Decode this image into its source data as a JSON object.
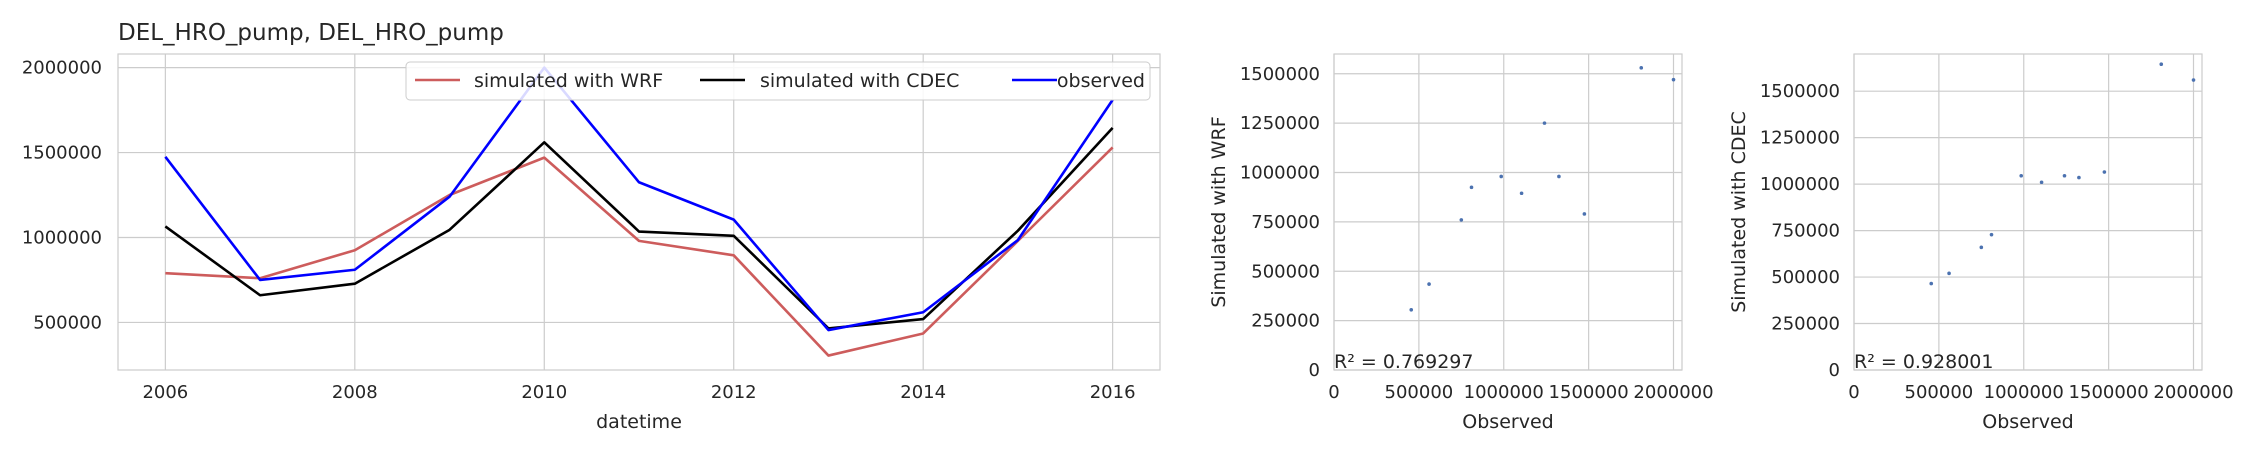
{
  "chart_data": [
    {
      "type": "line",
      "title": "DEL_HRO_pump, DEL_HRO_pump",
      "xlabel": "datetime",
      "ylabel": "",
      "x": [
        2006,
        2007,
        2008,
        2009,
        2010,
        2011,
        2012,
        2013,
        2014,
        2015,
        2016
      ],
      "xticks": [
        "2006",
        "2008",
        "2010",
        "2012",
        "2014",
        "2016"
      ],
      "yticks": [
        "500000",
        "1000000",
        "1500000",
        "2000000"
      ],
      "xlim": [
        2005.5,
        2016.5
      ],
      "ylim": [
        220000,
        2080000
      ],
      "grid": true,
      "legend": "top-right",
      "series": [
        {
          "name": "simulated with WRF",
          "color": "#cd5c5c",
          "values": [
            790000,
            760000,
            925000,
            1250000,
            1470000,
            980000,
            895000,
            305000,
            435000,
            980000,
            1530000
          ]
        },
        {
          "name": "simulated with CDEC",
          "color": "#000000",
          "values": [
            1065000,
            660000,
            728000,
            1045000,
            1560000,
            1035000,
            1010000,
            465000,
            520000,
            1040000,
            1645000
          ]
        },
        {
          "name": "observed",
          "color": "#0000ff",
          "values": [
            1475000,
            750000,
            810000,
            1240000,
            2000000,
            1325000,
            1105000,
            455000,
            560000,
            985000,
            1810000
          ]
        }
      ]
    },
    {
      "type": "scatter",
      "xlabel": "Observed",
      "ylabel": "Simulated with WRF",
      "annotation": "R² = 0.769297",
      "color": "#4c72b0",
      "xticks": [
        "0",
        "500000",
        "1000000",
        "1500000",
        "2000000"
      ],
      "yticks": [
        "0",
        "250000",
        "500000",
        "750000",
        "1000000",
        "1250000",
        "1500000"
      ],
      "xlim": [
        0,
        2050000
      ],
      "ylim": [
        0,
        1600000
      ],
      "grid": true,
      "x": [
        455000,
        560000,
        750000,
        810000,
        985000,
        1105000,
        1240000,
        1325000,
        1475000,
        1810000,
        2000000
      ],
      "y": [
        305000,
        435000,
        760000,
        925000,
        980000,
        895000,
        1250000,
        980000,
        790000,
        1530000,
        1470000
      ]
    },
    {
      "type": "scatter",
      "xlabel": "Observed",
      "ylabel": "Simulated with CDEC",
      "annotation": "R² = 0.928001",
      "color": "#4c72b0",
      "xticks": [
        "0",
        "500000",
        "1000000",
        "1500000",
        "2000000"
      ],
      "yticks": [
        "0",
        "250000",
        "500000",
        "750000",
        "1000000",
        "1250000",
        "1500000"
      ],
      "xlim": [
        0,
        2050000
      ],
      "ylim": [
        0,
        1700000
      ],
      "grid": true,
      "x": [
        455000,
        560000,
        750000,
        810000,
        985000,
        1105000,
        1240000,
        1325000,
        1475000,
        1810000,
        2000000
      ],
      "y": [
        465000,
        520000,
        660000,
        728000,
        1045000,
        1010000,
        1045000,
        1035000,
        1065000,
        1645000,
        1560000
      ]
    }
  ]
}
